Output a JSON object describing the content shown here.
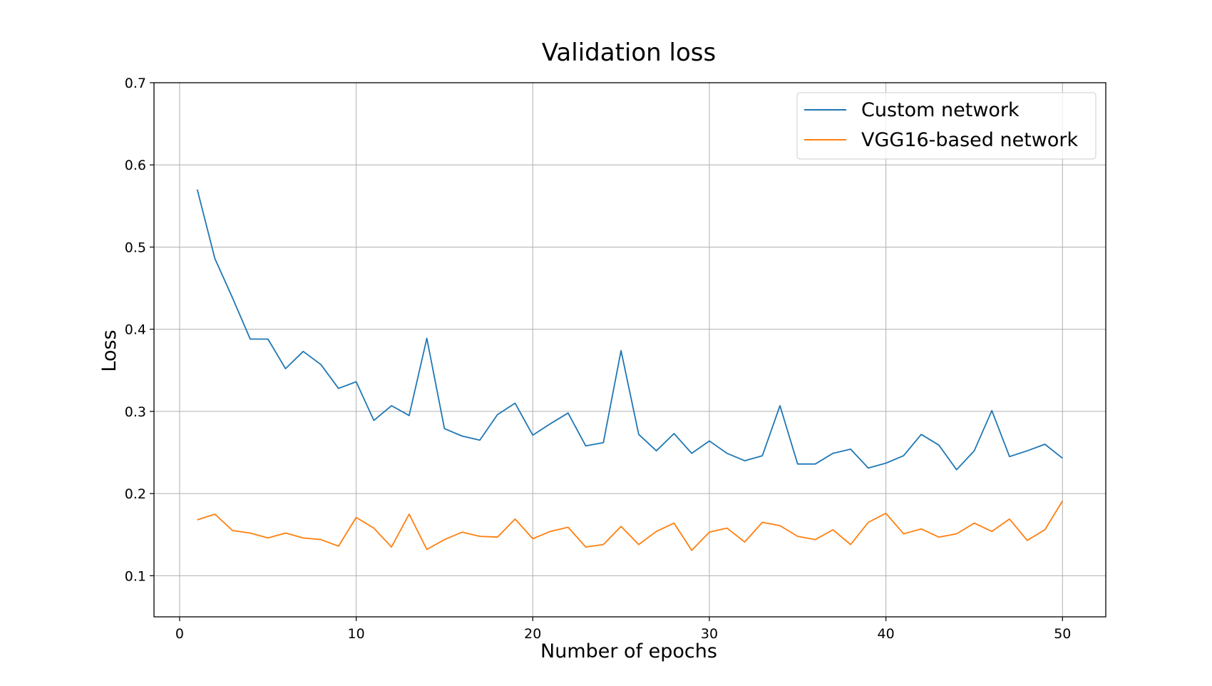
{
  "chart_data": {
    "type": "line",
    "title": "Validation loss",
    "xlabel": "Number of epochs",
    "ylabel": "Loss",
    "xlim": [
      -1.45,
      52.45
    ],
    "ylim": [
      0.05,
      0.7
    ],
    "xticks": [
      0,
      10,
      20,
      30,
      40,
      50
    ],
    "xtick_labels": [
      "0",
      "10",
      "20",
      "30",
      "40",
      "50"
    ],
    "yticks": [
      0.1,
      0.2,
      0.3,
      0.4,
      0.5,
      0.6,
      0.7
    ],
    "ytick_labels": [
      "0.1",
      "0.2",
      "0.3",
      "0.4",
      "0.5",
      "0.6",
      "0.7"
    ],
    "grid": true,
    "legend": "top-right",
    "x": [
      1,
      2,
      3,
      4,
      5,
      6,
      7,
      8,
      9,
      10,
      11,
      12,
      13,
      14,
      15,
      16,
      17,
      18,
      19,
      20,
      21,
      22,
      23,
      24,
      25,
      26,
      27,
      28,
      29,
      30,
      31,
      32,
      33,
      34,
      35,
      36,
      37,
      38,
      39,
      40,
      41,
      42,
      43,
      44,
      45,
      46,
      47,
      48,
      49,
      50
    ],
    "series": [
      {
        "name": "Custom network",
        "color": "#1f77b4",
        "values": [
          0.57,
          0.486,
          0.438,
          0.388,
          0.388,
          0.352,
          0.373,
          0.357,
          0.328,
          0.336,
          0.289,
          0.307,
          0.295,
          0.389,
          0.279,
          0.27,
          0.265,
          0.296,
          0.31,
          0.271,
          0.285,
          0.298,
          0.258,
          0.262,
          0.374,
          0.272,
          0.252,
          0.273,
          0.249,
          0.264,
          0.249,
          0.24,
          0.246,
          0.307,
          0.236,
          0.236,
          0.249,
          0.254,
          0.231,
          0.237,
          0.246,
          0.272,
          0.259,
          0.229,
          0.252,
          0.301,
          0.245,
          0.252,
          0.26,
          0.243
        ]
      },
      {
        "name": "VGG16-based network",
        "color": "#ff7f0e",
        "values": [
          0.168,
          0.175,
          0.155,
          0.152,
          0.146,
          0.152,
          0.146,
          0.144,
          0.136,
          0.171,
          0.158,
          0.135,
          0.175,
          0.132,
          0.144,
          0.153,
          0.148,
          0.147,
          0.169,
          0.145,
          0.154,
          0.159,
          0.135,
          0.138,
          0.16,
          0.138,
          0.154,
          0.164,
          0.131,
          0.153,
          0.158,
          0.141,
          0.165,
          0.161,
          0.148,
          0.144,
          0.156,
          0.138,
          0.165,
          0.176,
          0.151,
          0.157,
          0.147,
          0.151,
          0.164,
          0.154,
          0.169,
          0.143,
          0.156,
          0.191
        ]
      }
    ]
  }
}
